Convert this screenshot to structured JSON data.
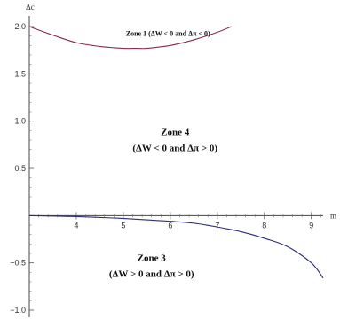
{
  "chart_data": {
    "type": "line",
    "xlabel": "m",
    "ylabel": "Δc",
    "xlim": [
      3.0,
      9.25
    ],
    "ylim": [
      -1.0,
      2.0
    ],
    "x_ticks": [
      4,
      5,
      6,
      7,
      8,
      9
    ],
    "y_ticks": [
      -1.0,
      -0.5,
      0.5,
      1.0,
      1.5,
      2.0
    ],
    "y_tick_labels": [
      "−1.0",
      "−0.5",
      "0.5",
      "1.0",
      "1.5",
      "2.0"
    ],
    "series": [
      {
        "color": "#8c2a4a",
        "x": [
          3.0,
          3.5,
          4.0,
          4.5,
          5.0,
          5.3,
          5.5,
          6.0,
          6.5,
          7.0,
          7.3
        ],
        "y": [
          2.0,
          1.91,
          1.83,
          1.79,
          1.77,
          1.77,
          1.77,
          1.8,
          1.86,
          1.94,
          2.0
        ]
      },
      {
        "color": "#2c2c7a",
        "x": [
          3.0,
          4.0,
          5.0,
          6.0,
          6.5,
          7.0,
          7.5,
          8.0,
          8.5,
          9.0,
          9.25
        ],
        "y": [
          0.0,
          -0.01,
          -0.03,
          -0.06,
          -0.08,
          -0.12,
          -0.17,
          -0.24,
          -0.33,
          -0.5,
          -0.66
        ]
      }
    ],
    "annotations": [
      {
        "lines": [
          "Zone 1 (ΔW < 0 and Δπ < 0)"
        ],
        "x": 5.95,
        "y": 1.9
      },
      {
        "lines": [
          "Zone 4",
          "(ΔW < 0 and Δπ > 0)"
        ],
        "x": 6.1,
        "y": 0.85
      },
      {
        "lines": [
          "Zone 3",
          "(ΔW > 0 and Δπ > 0)"
        ],
        "x": 5.6,
        "y": -0.48
      }
    ]
  }
}
